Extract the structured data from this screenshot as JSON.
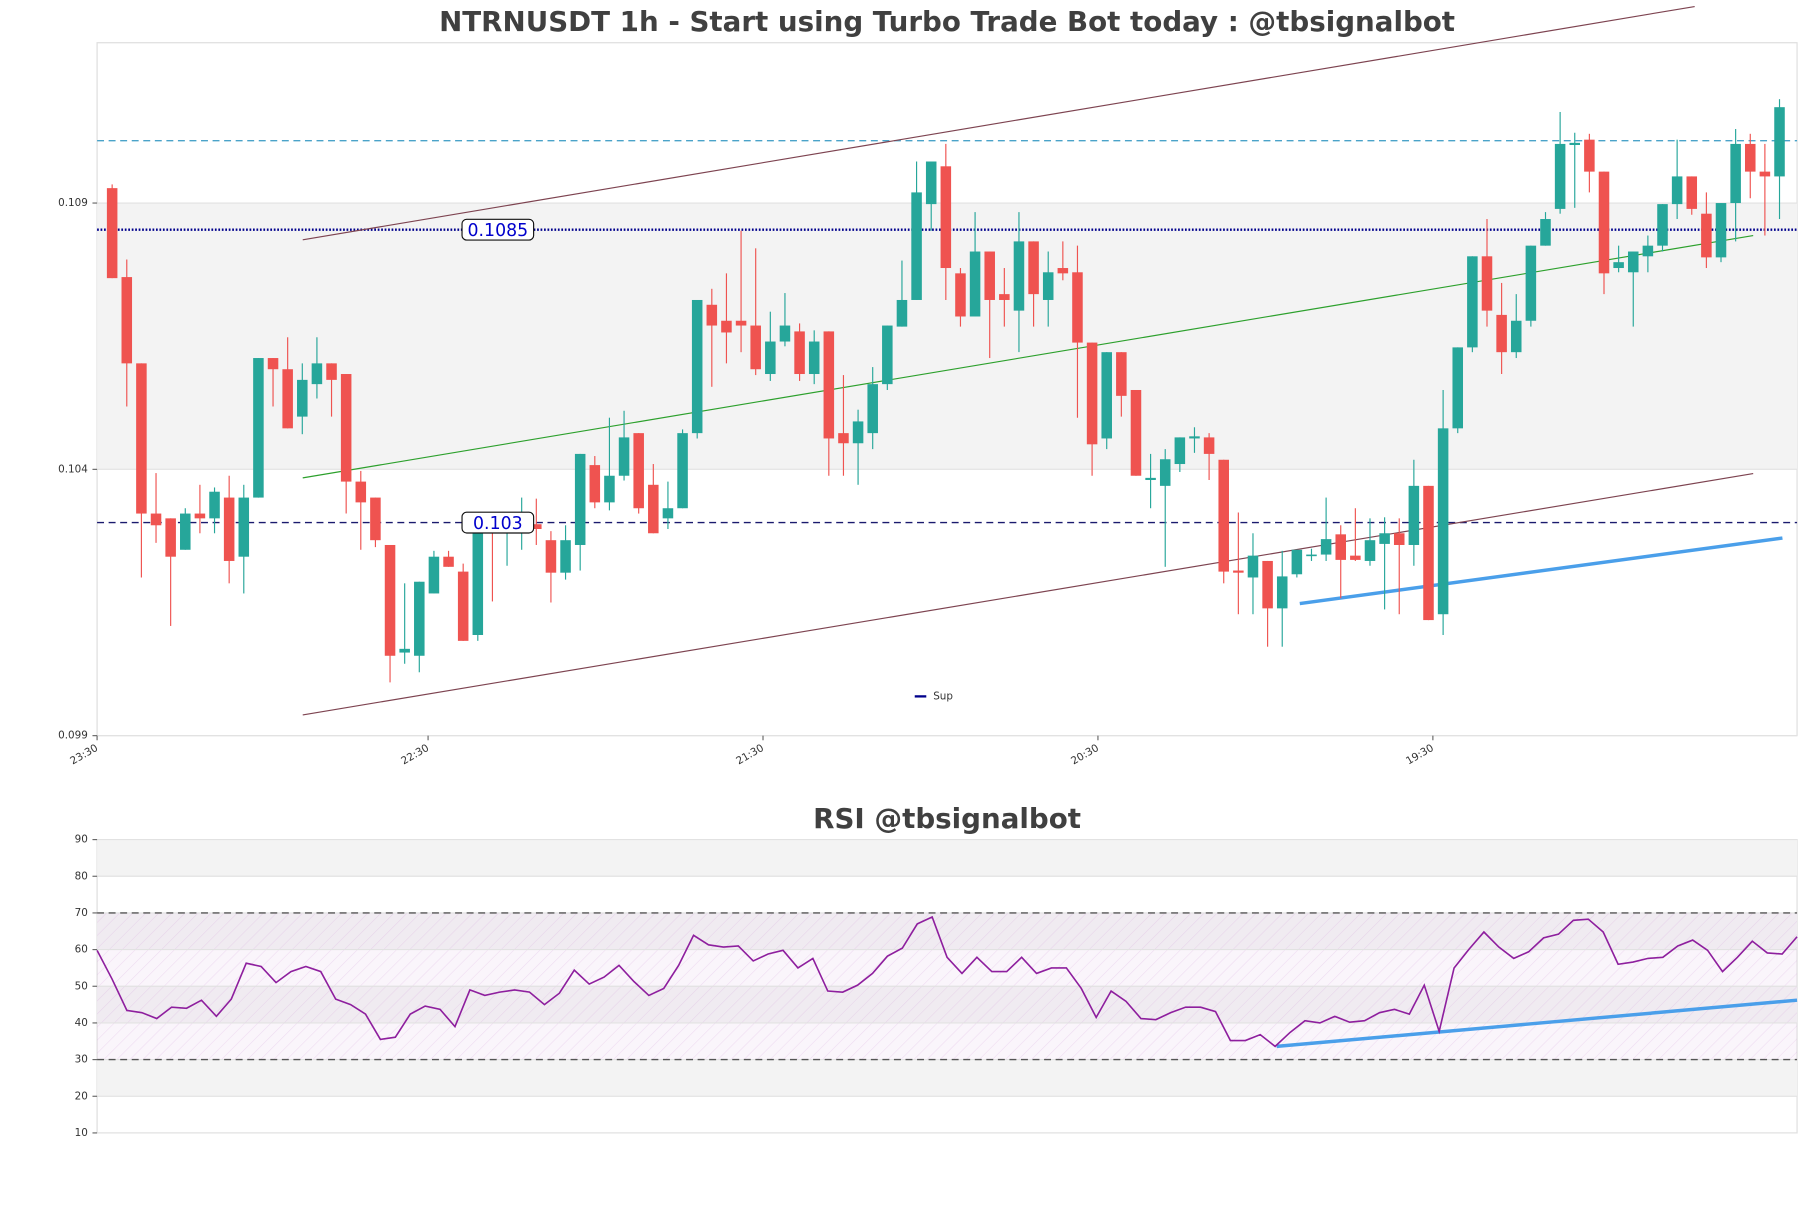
{
  "chart_data": [
    {
      "type": "candlestick",
      "title": "NTRNUSDT 1h - Start using Turbo Trade Bot today : @tbsignalbot",
      "x": [
        0,
        1,
        2,
        3,
        4,
        5,
        6,
        7,
        8,
        9,
        10,
        11,
        12,
        13,
        14,
        15,
        16,
        17,
        18,
        19,
        20,
        21,
        22,
        23,
        24,
        25,
        26,
        27,
        28,
        29,
        30,
        31,
        32,
        33,
        34,
        35,
        36,
        37,
        38,
        39,
        40,
        41,
        42,
        43,
        44,
        45,
        46,
        47,
        48,
        49,
        50,
        51,
        52,
        53,
        54,
        55,
        56,
        57,
        58,
        59,
        60,
        61,
        62,
        63,
        64,
        65,
        66,
        67,
        68,
        69,
        70,
        71,
        72,
        73,
        74,
        75,
        76,
        77,
        78,
        79,
        80,
        81,
        82,
        83,
        84,
        85,
        86,
        87,
        88,
        89,
        90,
        91,
        92,
        93,
        94,
        95,
        96,
        97,
        98,
        99,
        100,
        101,
        102,
        103,
        104,
        105,
        106,
        107,
        108,
        109,
        110,
        111,
        112,
        113,
        114
      ],
      "open": [
        0.10928,
        0.10761,
        0.10599,
        0.10317,
        0.10308,
        0.10249,
        0.10317,
        0.10308,
        0.10347,
        0.10236,
        0.10347,
        0.10609,
        0.10588,
        0.10499,
        0.1056,
        0.10599,
        0.10579,
        0.10377,
        0.10347,
        0.10258,
        0.10056,
        0.1005,
        0.10167,
        0.10236,
        0.10208,
        0.10089,
        0.10299,
        0.10282,
        0.10288,
        0.10297,
        0.10267,
        0.10206,
        0.10258,
        0.10408,
        0.10338,
        0.10388,
        0.10468,
        0.10371,
        0.10308,
        0.10327,
        0.10468,
        0.10709,
        0.10679,
        0.10679,
        0.1067,
        0.10579,
        0.1064,
        0.10659,
        0.10579,
        0.10659,
        0.10468,
        0.10449,
        0.10468,
        0.1056,
        0.10668,
        0.10718,
        0.10898,
        0.10969,
        0.10768,
        0.10687,
        0.10809,
        0.10729,
        0.10698,
        0.10828,
        0.10718,
        0.10778,
        0.1077,
        0.10638,
        0.10458,
        0.1062,
        0.10549,
        0.1038,
        0.10369,
        0.1041,
        0.10458,
        0.1046,
        0.10418,
        0.1021,
        0.10197,
        0.10228,
        0.10139,
        0.10203,
        0.10237,
        0.1024,
        0.10278,
        0.10238,
        0.10228,
        0.1026,
        0.1028,
        0.10258,
        0.10369,
        0.10128,
        0.10477,
        0.10629,
        0.108,
        0.1069,
        0.1062,
        0.10679,
        0.1082,
        0.10889,
        0.11009,
        0.11019,
        0.10959,
        0.10778,
        0.1077,
        0.108,
        0.1082,
        0.10898,
        0.1095,
        0.1088,
        0.10798,
        0.109,
        0.11011,
        0.10959,
        0.1095
      ],
      "high": [
        0.10935,
        0.10794,
        0.10599,
        0.10393,
        0.10308,
        0.10327,
        0.10371,
        0.10366,
        0.10388,
        0.10371,
        0.10609,
        0.10609,
        0.10648,
        0.10599,
        0.10648,
        0.10599,
        0.10579,
        0.10397,
        0.10347,
        0.10258,
        0.10186,
        0.10189,
        0.10247,
        0.10247,
        0.10223,
        0.10308,
        0.10308,
        0.10308,
        0.10347,
        0.10345,
        0.10284,
        0.10295,
        0.10429,
        0.10425,
        0.10497,
        0.1051,
        0.10468,
        0.1041,
        0.10377,
        0.10475,
        0.10718,
        0.10739,
        0.10768,
        0.10848,
        0.10815,
        0.10696,
        0.10731,
        0.10674,
        0.10661,
        0.10659,
        0.10577,
        0.10512,
        0.10592,
        0.1067,
        0.10792,
        0.10978,
        0.10978,
        0.11011,
        0.10778,
        0.10883,
        0.10809,
        0.10778,
        0.10883,
        0.10828,
        0.10809,
        0.10828,
        0.1082,
        0.10638,
        0.1062,
        0.1062,
        0.10549,
        0.10429,
        0.10438,
        0.1046,
        0.10479,
        0.10468,
        0.10418,
        0.10319,
        0.1028,
        0.10228,
        0.10247,
        0.10249,
        0.10251,
        0.10347,
        0.10295,
        0.10327,
        0.10308,
        0.1031,
        0.10308,
        0.10418,
        0.10369,
        0.10549,
        0.10629,
        0.108,
        0.1087,
        0.1075,
        0.10729,
        0.1082,
        0.10883,
        0.11071,
        0.11032,
        0.1103,
        0.10959,
        0.1082,
        0.10809,
        0.10839,
        0.10898,
        0.11019,
        0.1095,
        0.1092,
        0.109,
        0.11039,
        0.1103,
        0.11011,
        0.11095
      ],
      "low": [
        0.10759,
        0.10518,
        0.10197,
        0.10262,
        0.10106,
        0.10249,
        0.1028,
        0.1028,
        0.10186,
        0.10167,
        0.10347,
        0.10518,
        0.10477,
        0.10466,
        0.10533,
        0.10499,
        0.10317,
        0.10249,
        0.10254,
        0.1,
        0.10035,
        0.10019,
        0.10167,
        0.10217,
        0.10078,
        0.10078,
        0.10152,
        0.10219,
        0.10249,
        0.10258,
        0.1015,
        0.10193,
        0.1021,
        0.10327,
        0.10323,
        0.10379,
        0.10317,
        0.1028,
        0.10288,
        0.10327,
        0.10458,
        0.10555,
        0.10599,
        0.1062,
        0.10577,
        0.10566,
        0.10631,
        0.10566,
        0.1056,
        0.10388,
        0.10388,
        0.10371,
        0.10438,
        0.10549,
        0.10668,
        0.10718,
        0.10848,
        0.10718,
        0.10668,
        0.10687,
        0.10609,
        0.10668,
        0.1062,
        0.10668,
        0.10668,
        0.10755,
        0.10497,
        0.10388,
        0.10438,
        0.10499,
        0.10388,
        0.10327,
        0.10217,
        0.10395,
        0.10431,
        0.1038,
        0.10186,
        0.10128,
        0.10128,
        0.10067,
        0.10067,
        0.10197,
        0.10228,
        0.10228,
        0.10158,
        0.10228,
        0.10219,
        0.10137,
        0.10128,
        0.10219,
        0.10117,
        0.10089,
        0.10468,
        0.1062,
        0.10668,
        0.10579,
        0.10609,
        0.10668,
        0.1082,
        0.1088,
        0.10891,
        0.1092,
        0.10729,
        0.1077,
        0.10668,
        0.1077,
        0.10809,
        0.1087,
        0.10878,
        0.10778,
        0.10789,
        0.10828,
        0.10909,
        0.10839,
        0.1087
      ],
      "close": [
        0.10759,
        0.10599,
        0.10317,
        0.10295,
        0.10236,
        0.10317,
        0.10308,
        0.10358,
        0.10228,
        0.10347,
        0.10609,
        0.10588,
        0.10477,
        0.10568,
        0.10599,
        0.10568,
        0.10377,
        0.10338,
        0.10267,
        0.1005,
        0.10063,
        0.10189,
        0.10236,
        0.10217,
        0.10078,
        0.10308,
        0.10284,
        0.10288,
        0.10297,
        0.10288,
        0.10206,
        0.10267,
        0.10429,
        0.10338,
        0.10388,
        0.1046,
        0.10327,
        0.1028,
        0.10327,
        0.10468,
        0.10718,
        0.1067,
        0.10657,
        0.1067,
        0.10588,
        0.1064,
        0.1067,
        0.10579,
        0.1064,
        0.10458,
        0.10449,
        0.1049,
        0.1056,
        0.1067,
        0.10718,
        0.1092,
        0.10978,
        0.10778,
        0.10687,
        0.10809,
        0.10718,
        0.10718,
        0.10828,
        0.10729,
        0.1077,
        0.10768,
        0.10638,
        0.10447,
        0.1062,
        0.10538,
        0.10388,
        0.10384,
        0.10419,
        0.1046,
        0.10462,
        0.10429,
        0.10208,
        0.10206,
        0.10238,
        0.10139,
        0.10199,
        0.10249,
        0.1024,
        0.10269,
        0.1023,
        0.1023,
        0.10267,
        0.1028,
        0.10258,
        0.10369,
        0.10117,
        0.10477,
        0.10629,
        0.108,
        0.10698,
        0.1062,
        0.10679,
        0.1082,
        0.1087,
        0.11011,
        0.11013,
        0.10959,
        0.10768,
        0.10789,
        0.10809,
        0.1082,
        0.10898,
        0.1095,
        0.10889,
        0.10798,
        0.109,
        0.11011,
        0.10959,
        0.1095,
        0.1108
      ],
      "up_color": "#26a69a",
      "down_color": "#ef5350",
      "xlim": [
        -1.03,
        115.2
      ],
      "xticks": [
        {
          "value": -1.03,
          "label": "23:30"
        },
        {
          "value": 21.6,
          "label": "22:30"
        },
        {
          "value": 44.5,
          "label": "21:30"
        },
        {
          "value": 67.4,
          "label": "20:30"
        },
        {
          "value": 90.3,
          "label": "19:30"
        }
      ],
      "ylim": [
        0.099,
        0.11201
      ],
      "yticks": [
        0.099,
        0.104,
        0.109
      ],
      "hlines": [
        {
          "value": 0.11017,
          "color": "#4aa3c9",
          "style": "dashed"
        },
        {
          "name": "Sup",
          "value": 0.1085,
          "color": "#00008b",
          "style": "dotted",
          "show_value": true
        },
        {
          "value": 0.103,
          "color": "#1a1a6e",
          "style": "dashed",
          "show_value": true
        }
      ],
      "lines": [
        {
          "x": [
            13.03,
            108.2
          ],
          "y": [
            0.10831,
            0.11269
          ],
          "color": "#7d4350",
          "width": 1
        },
        {
          "x": [
            13.03,
            112.2
          ],
          "y": [
            0.09939,
            0.10392
          ],
          "color": "#7d4350",
          "width": 1
        },
        {
          "x": [
            13.03,
            112.2
          ],
          "y": [
            0.10384,
            0.10839
          ],
          "color": "#2ca02c",
          "width": 1
        },
        {
          "x": [
            81.2,
            114.2
          ],
          "y": [
            0.10148,
            0.10271
          ],
          "color": "#4a9fea",
          "width": 3
        }
      ],
      "legend": "lower center"
    },
    {
      "type": "line",
      "title": "RSI @tbsignalbot",
      "x": [
        0,
        1,
        2,
        3,
        4,
        5,
        6,
        7,
        8,
        9,
        10,
        11,
        12,
        13,
        14,
        15,
        16,
        17,
        18,
        19,
        20,
        21,
        22,
        23,
        24,
        25,
        26,
        27,
        28,
        29,
        30,
        31,
        32,
        33,
        34,
        35,
        36,
        37,
        38,
        39,
        40,
        41,
        42,
        43,
        44,
        45,
        46,
        47,
        48,
        49,
        50,
        51,
        52,
        53,
        54,
        55,
        56,
        57,
        58,
        59,
        60,
        61,
        62,
        63,
        64,
        65,
        66,
        67,
        68,
        69,
        70,
        71,
        72,
        73,
        74,
        75,
        76,
        77,
        78,
        79,
        80,
        81,
        82,
        83,
        84,
        85,
        86,
        87,
        88,
        89,
        90,
        91,
        92,
        93,
        94,
        95,
        96,
        97,
        98,
        99,
        100,
        101,
        102,
        103,
        104,
        105,
        106,
        107,
        108,
        109,
        110,
        111,
        112,
        113,
        114
      ],
      "values": [
        59.8,
        52,
        43.4,
        42.8,
        41.2,
        44.3,
        44,
        46.2,
        41.8,
        46.5,
        56.3,
        55.4,
        51,
        54,
        55.4,
        54,
        46.5,
        45,
        42.4,
        35.5,
        36.1,
        42.4,
        44.6,
        43.7,
        39,
        49,
        47.5,
        48.4,
        49,
        48.4,
        45,
        48.1,
        54.4,
        50.6,
        52.5,
        55.7,
        51.3,
        47.5,
        49.4,
        55.7,
        63.9,
        61.3,
        60.7,
        61,
        56.9,
        58.8,
        59.8,
        55,
        57.6,
        48.7,
        48.4,
        50.3,
        53.5,
        58.2,
        60.4,
        67,
        68.9,
        57.9,
        53.5,
        57.9,
        54,
        54,
        57.9,
        53.5,
        55,
        55,
        49.4,
        41.5,
        48.7,
        45.9,
        41.2,
        40.9,
        42.8,
        44.3,
        44.3,
        43.1,
        35.2,
        35.2,
        36.8,
        33.6,
        37.4,
        40.6,
        40,
        41.8,
        40.2,
        40.6,
        42.8,
        43.7,
        42.4,
        50.3,
        37.7,
        55,
        60.1,
        64.8,
        60.7,
        57.6,
        59.4,
        63.2,
        64.2,
        68,
        68.3,
        64.8,
        56,
        56.6,
        57.6,
        57.9,
        61,
        62.6,
        59.8,
        54,
        57.9,
        62.3,
        59.1,
        58.8,
        63.5
      ],
      "color": "#8e1f9e",
      "xlim": [
        0,
        114
      ],
      "ylim": [
        10,
        90
      ],
      "yticks": [
        10,
        20,
        30,
        40,
        50,
        60,
        70,
        80,
        90
      ],
      "hlines": [
        {
          "value": 70,
          "color": "#555555",
          "style": "dashed"
        },
        {
          "value": 30,
          "color": "#555555",
          "style": "dashed"
        }
      ],
      "lines": [
        {
          "x": [
            79.1,
            114
          ],
          "y": [
            33.6,
            46.2
          ],
          "color": "#4a9fea",
          "width": 3
        }
      ]
    }
  ]
}
